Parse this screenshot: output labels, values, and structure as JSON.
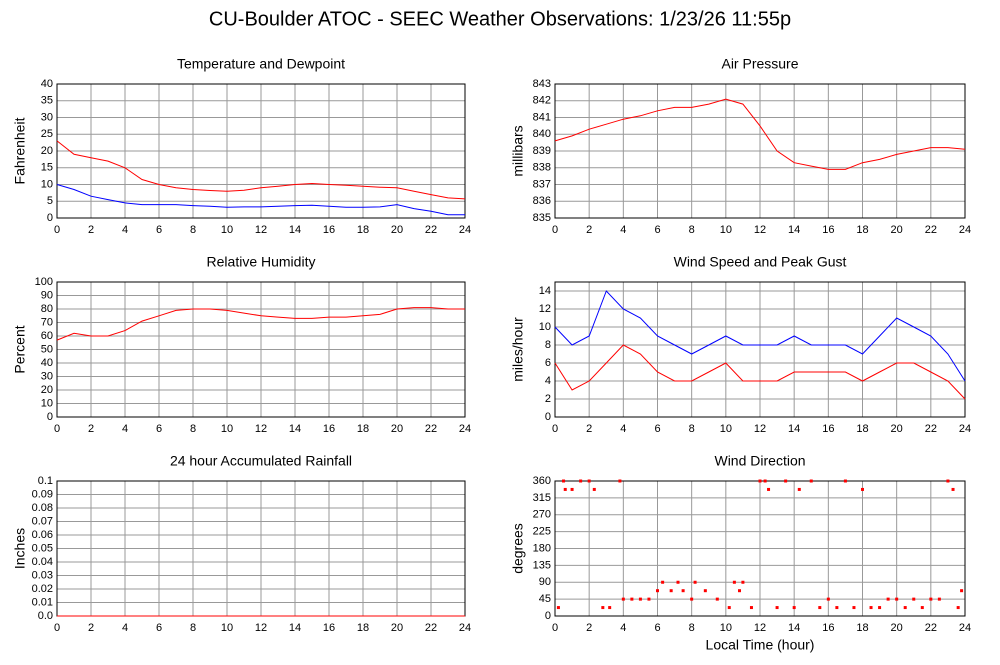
{
  "title": "CU-Boulder ATOC - SEEC Weather Observations: 1/23/26 11:55p",
  "chart_data": [
    {
      "type": "line",
      "title": "Temperature and Dewpoint",
      "ylabel": "Fahrenheit",
      "x": [
        0,
        1,
        2,
        3,
        4,
        5,
        6,
        7,
        8,
        9,
        10,
        11,
        12,
        13,
        14,
        15,
        16,
        17,
        18,
        19,
        20,
        21,
        22,
        23,
        24
      ],
      "series": [
        {
          "color": "#ff0000",
          "values": [
            23,
            19,
            18,
            17,
            15,
            11.5,
            10,
            9,
            8.5,
            8.2,
            8,
            8.3,
            9,
            9.5,
            10,
            10.3,
            10,
            9.8,
            9.5,
            9.2,
            9,
            8,
            7,
            6,
            5.7
          ]
        },
        {
          "color": "#0000ff",
          "values": [
            10,
            8.5,
            6.5,
            5.5,
            4.5,
            4,
            4,
            4,
            3.7,
            3.5,
            3.2,
            3.3,
            3.3,
            3.5,
            3.7,
            3.8,
            3.5,
            3.2,
            3.2,
            3.3,
            4,
            2.8,
            2,
            1,
            1
          ]
        }
      ],
      "xlim": [
        0,
        24
      ],
      "xticks": [
        0,
        2,
        4,
        6,
        8,
        10,
        12,
        14,
        16,
        18,
        20,
        22,
        24
      ],
      "ylim": [
        0,
        40
      ],
      "yticks": [
        0,
        5,
        10,
        15,
        20,
        25,
        30,
        35,
        40
      ],
      "grid": true
    },
    {
      "type": "line",
      "title": "Air Pressure",
      "ylabel": "millibars",
      "x": [
        0,
        1,
        2,
        3,
        4,
        5,
        6,
        7,
        8,
        9,
        10,
        11,
        12,
        13,
        14,
        15,
        16,
        17,
        18,
        19,
        20,
        21,
        22,
        23,
        24
      ],
      "series": [
        {
          "color": "#ff0000",
          "values": [
            839.6,
            839.9,
            840.3,
            840.6,
            840.9,
            841.1,
            841.4,
            841.6,
            841.6,
            841.8,
            842.1,
            841.8,
            840.5,
            839,
            838.3,
            838.1,
            837.9,
            837.9,
            838.3,
            838.5,
            838.8,
            839,
            839.2,
            839.2,
            839.1
          ]
        }
      ],
      "xlim": [
        0,
        24
      ],
      "xticks": [
        0,
        2,
        4,
        6,
        8,
        10,
        12,
        14,
        16,
        18,
        20,
        22,
        24
      ],
      "ylim": [
        835,
        843
      ],
      "yticks": [
        835,
        836,
        837,
        838,
        839,
        840,
        841,
        842,
        843
      ],
      "grid": true
    },
    {
      "type": "line",
      "title": "Relative Humidity",
      "ylabel": "Percent",
      "x": [
        0,
        1,
        2,
        3,
        4,
        5,
        6,
        7,
        8,
        9,
        10,
        11,
        12,
        13,
        14,
        15,
        16,
        17,
        18,
        19,
        20,
        21,
        22,
        23,
        24
      ],
      "series": [
        {
          "color": "#ff0000",
          "values": [
            57,
            62,
            60,
            60,
            64,
            71,
            75,
            79,
            80,
            80,
            79,
            77,
            75,
            74,
            73,
            73,
            74,
            74,
            75,
            76,
            80,
            81,
            81,
            80,
            80
          ]
        }
      ],
      "xlim": [
        0,
        24
      ],
      "xticks": [
        0,
        2,
        4,
        6,
        8,
        10,
        12,
        14,
        16,
        18,
        20,
        22,
        24
      ],
      "ylim": [
        0,
        100
      ],
      "yticks": [
        0,
        10,
        20,
        30,
        40,
        50,
        60,
        70,
        80,
        90,
        100
      ],
      "grid": true
    },
    {
      "type": "line",
      "title": "Wind Speed and Peak Gust",
      "ylabel": "miles/hour",
      "x": [
        0,
        1,
        2,
        3,
        4,
        5,
        6,
        7,
        8,
        9,
        10,
        11,
        12,
        13,
        14,
        15,
        16,
        17,
        18,
        19,
        20,
        21,
        22,
        23,
        24
      ],
      "series": [
        {
          "color": "#0000ff",
          "values": [
            10,
            8,
            9,
            14,
            12,
            11,
            9,
            8,
            7,
            8,
            9,
            8,
            8,
            8,
            9,
            8,
            8,
            8,
            7,
            9,
            11,
            10,
            9,
            7,
            4
          ]
        },
        {
          "color": "#ff0000",
          "values": [
            6,
            3,
            4,
            6,
            8,
            7,
            5,
            4,
            4,
            5,
            6,
            4,
            4,
            4,
            5,
            5,
            5,
            5,
            4,
            5,
            6,
            6,
            5,
            4,
            2
          ]
        }
      ],
      "xlim": [
        0,
        24
      ],
      "xticks": [
        0,
        2,
        4,
        6,
        8,
        10,
        12,
        14,
        16,
        18,
        20,
        22,
        24
      ],
      "ylim": [
        0,
        15
      ],
      "yticks": [
        0,
        2,
        4,
        6,
        8,
        10,
        12,
        14
      ],
      "grid": true
    },
    {
      "type": "line",
      "title": "24 hour Accumulated Rainfall",
      "ylabel": "Inches",
      "x": [
        0,
        1,
        2,
        3,
        4,
        5,
        6,
        7,
        8,
        9,
        10,
        11,
        12,
        13,
        14,
        15,
        16,
        17,
        18,
        19,
        20,
        21,
        22,
        23,
        24
      ],
      "series": [
        {
          "color": "#ff0000",
          "values": [
            0,
            0,
            0,
            0,
            0,
            0,
            0,
            0,
            0,
            0,
            0,
            0,
            0,
            0,
            0,
            0,
            0,
            0,
            0,
            0,
            0,
            0,
            0,
            0,
            0
          ]
        }
      ],
      "xlim": [
        0,
        24
      ],
      "xticks": [
        0,
        2,
        4,
        6,
        8,
        10,
        12,
        14,
        16,
        18,
        20,
        22,
        24
      ],
      "ylim": [
        0,
        0.1
      ],
      "yticks": [
        {
          "value": 0,
          "label": "0.0"
        },
        0.01,
        0.02,
        0.03,
        0.04,
        0.05,
        0.06,
        0.07,
        0.08,
        0.09,
        0.1
      ],
      "grid": true
    },
    {
      "type": "scatter",
      "title": "Wind Direction",
      "ylabel": "degrees",
      "xlabel": "Local Time (hour)",
      "x": [
        0.2,
        0.5,
        0.6,
        1,
        1.5,
        2,
        2.3,
        2.8,
        3.2,
        3.8,
        4,
        4.5,
        5,
        5.5,
        6,
        6.3,
        6.8,
        7.2,
        7.5,
        8,
        8.2,
        8.8,
        9.5,
        10.2,
        10.5,
        10.8,
        11,
        11.5,
        12,
        12.3,
        12.5,
        13,
        13.5,
        14,
        14.3,
        15,
        15.5,
        16,
        16.5,
        17,
        17.5,
        18,
        18.5,
        19,
        19.5,
        20,
        20.5,
        21,
        21.5,
        22,
        22.5,
        23,
        23.3,
        23.6,
        23.8
      ],
      "series": [
        {
          "color": "#ff0000",
          "values": [
            22.5,
            360,
            337.5,
            337.5,
            360,
            360,
            337.5,
            22.5,
            22.5,
            360,
            45,
            45,
            45,
            45,
            67.5,
            90,
            67.5,
            90,
            67.5,
            45,
            90,
            67.5,
            45,
            22.5,
            90,
            67.5,
            90,
            22.5,
            360,
            360,
            337.5,
            22.5,
            360,
            22.5,
            337.5,
            360,
            22.5,
            45,
            22.5,
            360,
            22.5,
            337.5,
            22.5,
            22.5,
            45,
            45,
            22.5,
            45,
            22.5,
            45,
            45,
            360,
            337.5,
            22.5,
            67.5
          ]
        }
      ],
      "xlim": [
        0,
        24
      ],
      "xticks": [
        0,
        2,
        4,
        6,
        8,
        10,
        12,
        14,
        16,
        18,
        20,
        22,
        24
      ],
      "ylim": [
        0,
        360
      ],
      "yticks": [
        0,
        45,
        90,
        135,
        180,
        225,
        270,
        315,
        360
      ],
      "grid": true
    }
  ]
}
